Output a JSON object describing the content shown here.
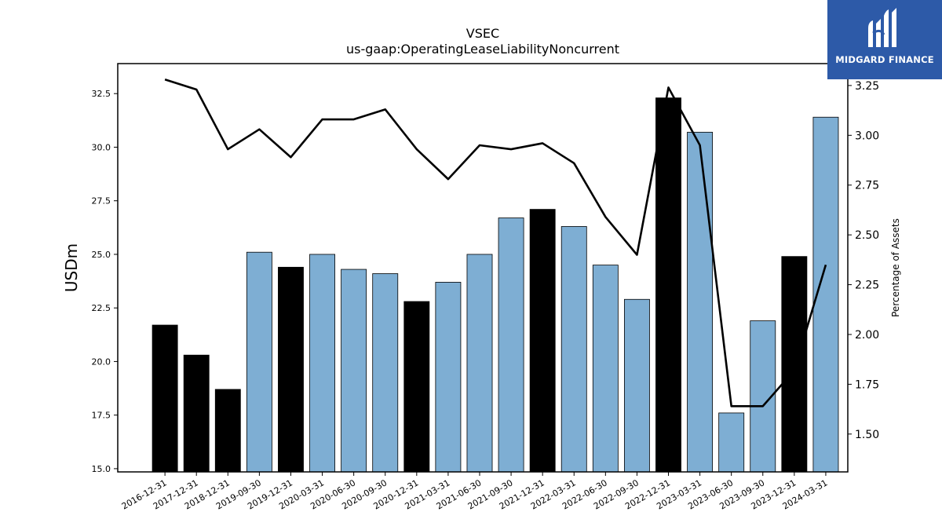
{
  "chart_data": {
    "type": "bar",
    "title": "VSEC",
    "subtitle": "us-gaap:OperatingLeaseLiabilityNoncurrent",
    "ylabel": "USDm",
    "y2label": "Percentage of Assets",
    "ylim": [
      14.85,
      33.9
    ],
    "y2lim": [
      1.31,
      3.36
    ],
    "yticks": [
      "15.0",
      "17.5",
      "20.0",
      "22.5",
      "25.0",
      "27.5",
      "30.0",
      "32.5"
    ],
    "y2ticks": [
      "1.50",
      "1.75",
      "2.00",
      "2.25",
      "2.50",
      "2.75",
      "3.00",
      "3.25"
    ],
    "grid": false,
    "categories": [
      "2016-12-31",
      "2017-12-31",
      "2018-12-31",
      "2019-09-30",
      "2019-12-31",
      "2020-03-31",
      "2020-06-30",
      "2020-09-30",
      "2020-12-31",
      "2021-03-31",
      "2021-06-30",
      "2021-09-30",
      "2021-12-31",
      "2022-03-31",
      "2022-06-30",
      "2022-09-30",
      "2022-12-31",
      "2023-03-31",
      "2023-06-30",
      "2023-09-30",
      "2023-12-31",
      "2024-03-31"
    ],
    "series": [
      {
        "type": "bar",
        "values": [
          21.7,
          20.3,
          18.7,
          25.1,
          24.4,
          25.0,
          24.3,
          24.1,
          22.8,
          23.7,
          25.0,
          26.7,
          27.1,
          26.3,
          24.5,
          22.9,
          32.3,
          30.7,
          17.6,
          21.9,
          24.9,
          31.4
        ],
        "annual": [
          true,
          true,
          true,
          false,
          true,
          false,
          false,
          false,
          true,
          false,
          false,
          false,
          true,
          false,
          false,
          false,
          true,
          false,
          false,
          false,
          true,
          false
        ],
        "annual_color": "#000000",
        "quarter_color": "#7eaed3"
      },
      {
        "type": "line",
        "axis": "right",
        "color": "#000000",
        "values": [
          3.28,
          3.23,
          2.93,
          3.03,
          2.89,
          3.08,
          3.08,
          3.13,
          2.93,
          2.78,
          2.95,
          2.93,
          2.96,
          2.86,
          2.59,
          2.4,
          3.24,
          2.95,
          1.64,
          1.64,
          1.82,
          2.35
        ]
      }
    ]
  },
  "logo": {
    "text": "MIDGARD FINANCE",
    "bg": "#2d5aa8"
  }
}
